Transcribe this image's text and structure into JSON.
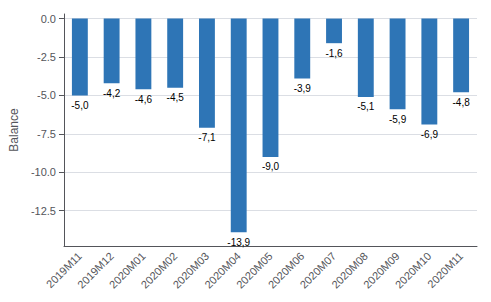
{
  "chart_data": {
    "type": "bar",
    "categories": [
      "2019M11",
      "2019M12",
      "2020M01",
      "2020M02",
      "2020M03",
      "2020M04",
      "2020M05",
      "2020M06",
      "2020M07",
      "2020M08",
      "2020M09",
      "2020M10",
      "2020M11"
    ],
    "values": [
      -5.0,
      -4.2,
      -4.6,
      -4.5,
      -7.1,
      -13.9,
      -9.0,
      -3.9,
      -1.6,
      -5.1,
      -5.9,
      -6.9,
      -4.8
    ],
    "value_labels": [
      "-5,0",
      "-4,2",
      "-4,6",
      "-4,5",
      "-7,1",
      "-13,9",
      "-9,0",
      "-3,9",
      "-1,6",
      "-5,1",
      "-5,9",
      "-6,9",
      "-4,8"
    ],
    "data_labels": true,
    "color": "#2E75B6",
    "ylabel": "Balance",
    "ylim": [
      -14.8,
      0.3
    ],
    "yticks": [
      {
        "value": 0.0,
        "label": "0.0"
      },
      -2.5,
      {
        "value": -5.0,
        "label": "-5.0"
      },
      -7.5,
      {
        "value": -10.0,
        "label": "-10.0"
      },
      -12.5
    ],
    "grid": true
  }
}
